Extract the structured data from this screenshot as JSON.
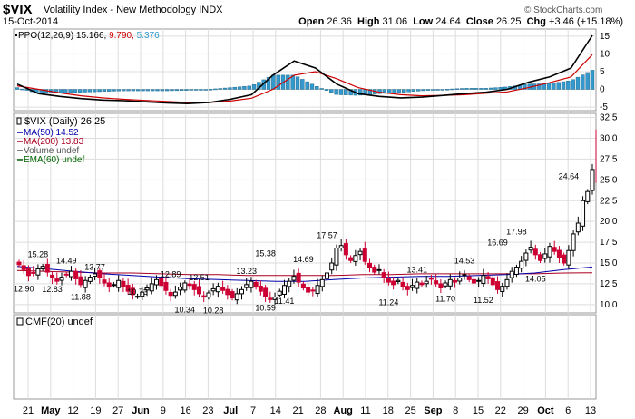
{
  "header": {
    "symbol": "$VIX",
    "name": "Volatility Index - New Methodology",
    "exchange": "INDX",
    "date": "15-Oct-2014",
    "open_label": "Open",
    "open": "26.36",
    "high_label": "High",
    "high": "31.06",
    "low_label": "Low",
    "low": "24.64",
    "close_label": "Close",
    "close": "26.25",
    "chg_label": "Chg",
    "chg": "+3.46 (+15.18%)",
    "brand": "© StockCharts.com"
  },
  "colors": {
    "up": "#000000",
    "down": "#cc0033",
    "ppo": "#000000",
    "signal": "#cc0000",
    "hist": "#3399cc",
    "ma50": "#0000aa",
    "ma200": "#aa0022",
    "ema60": "#006600",
    "grid": "#dddddd"
  },
  "chart_data": [
    {
      "type": "line",
      "panel": "ppo",
      "legend": {
        "label": "PPO(12,26,9)",
        "ppo": "15.166",
        "signal": "9.790",
        "hist": "5.376"
      },
      "ylim": [
        -6,
        17
      ],
      "y_ticks": [
        "15",
        "10",
        "5",
        "0",
        "-5"
      ],
      "series": [
        {
          "name": "PPO",
          "values": [
            1.5,
            -1.2,
            -2.0,
            -2.6,
            -3.0,
            -3.2,
            -3.5,
            -3.8,
            -4.0,
            -3.7,
            -2.8,
            -1.5,
            4.0,
            8.0,
            6.0,
            1.5,
            -1.2,
            -2.0,
            -2.4,
            -2.2,
            -1.7,
            -1.2,
            -0.8,
            0.0,
            2.0,
            3.5,
            6.0,
            15.2
          ]
        },
        {
          "name": "Signal",
          "values": [
            1.0,
            0.0,
            -1.0,
            -1.8,
            -2.4,
            -2.8,
            -3.1,
            -3.4,
            -3.7,
            -3.7,
            -3.3,
            -2.5,
            0.0,
            4.0,
            5.0,
            3.0,
            0.5,
            -0.8,
            -1.5,
            -1.8,
            -1.7,
            -1.5,
            -1.1,
            -0.7,
            0.5,
            1.9,
            3.5,
            9.8
          ]
        },
        {
          "name": "Histogram",
          "values": [
            0.5,
            -1.2,
            -1.0,
            -0.8,
            -0.6,
            -0.4,
            -0.4,
            -0.4,
            -0.3,
            0.0,
            0.5,
            1.0,
            4.0,
            4.0,
            1.0,
            -1.5,
            -1.7,
            -1.2,
            -0.9,
            -0.4,
            0.0,
            0.3,
            0.3,
            0.7,
            1.5,
            1.6,
            2.5,
            5.4
          ]
        }
      ]
    },
    {
      "type": "candlestick",
      "panel": "price",
      "legend": {
        "title": "$VIX (Daily) 26.25",
        "ma50": "MA(50) 14.52",
        "ma200": "MA(200) 13.83",
        "volume": "Volume undef",
        "ema60": "EMA(60) undef"
      },
      "ylim": [
        9,
        33
      ],
      "y_ticks": [
        "32.5",
        "30.0",
        "27.5",
        "25.0",
        "22.5",
        "20.0",
        "17.5",
        "15.0",
        "12.5",
        "10.0"
      ],
      "x_ticks": [
        "21",
        "May",
        "12",
        "19",
        "27",
        "Jun",
        "9",
        "16",
        "23",
        "Jul",
        "7",
        "14",
        "21",
        "28",
        "Aug",
        "11",
        "18",
        "25",
        "Sep",
        "8",
        "15",
        "22",
        "29",
        "Oct",
        "6",
        "13"
      ],
      "closes": [
        14.8,
        14.2,
        13.5,
        13.8,
        14.3,
        14.6,
        13.9,
        13.2,
        12.8,
        13.3,
        13.6,
        14.0,
        13.1,
        12.4,
        12.9,
        13.3,
        13.7,
        13.2,
        12.6,
        12.1,
        12.4,
        12.9,
        12.2,
        11.6,
        11.2,
        11.0,
        11.5,
        12.0,
        12.5,
        13.0,
        12.3,
        11.7,
        11.1,
        11.5,
        12.1,
        12.6,
        12.3,
        11.8,
        11.3,
        10.9,
        11.4,
        11.9,
        12.2,
        11.7,
        11.2,
        10.8,
        11.3,
        11.8,
        12.4,
        12.8,
        12.1,
        11.6,
        11.0,
        10.6,
        10.9,
        11.6,
        12.3,
        12.8,
        13.4,
        12.7,
        12.0,
        11.5,
        11.7,
        12.3,
        13.0,
        13.8,
        15.0,
        16.8,
        17.1,
        16.0,
        15.3,
        15.9,
        16.4,
        15.2,
        14.5,
        13.9,
        14.2,
        13.3,
        12.7,
        12.4,
        12.9,
        12.2,
        11.8,
        12.3,
        12.7,
        12.4,
        12.8,
        13.1,
        12.5,
        12.0,
        12.6,
        13.0,
        12.7,
        13.2,
        13.6,
        13.0,
        12.6,
        12.9,
        13.5,
        13.1,
        12.4,
        11.8,
        12.2,
        13.0,
        14.0,
        14.5,
        15.2,
        16.2,
        16.9,
        16.0,
        15.3,
        16.1,
        17.0,
        16.4,
        15.6,
        15.0,
        16.5,
        18.5,
        19.8,
        22.5,
        23.6,
        26.25
      ],
      "labels": [
        {
          "i": 1,
          "v": 12.9,
          "text": "12.90"
        },
        {
          "i": 4,
          "v": 15.28,
          "text": "15.28"
        },
        {
          "i": 7,
          "v": 12.83,
          "text": "12.83"
        },
        {
          "i": 10,
          "v": 14.49,
          "text": "14.49"
        },
        {
          "i": 13,
          "v": 11.88,
          "text": "11.88"
        },
        {
          "i": 16,
          "v": 13.77,
          "text": "13.77"
        },
        {
          "i": 25,
          "v": 10.73,
          "text": "10.73"
        },
        {
          "i": 32,
          "v": 12.89,
          "text": "12.89"
        },
        {
          "i": 35,
          "v": 10.34,
          "text": "10.34"
        },
        {
          "i": 38,
          "v": 12.51,
          "text": "12.51"
        },
        {
          "i": 41,
          "v": 10.28,
          "text": "10.28"
        },
        {
          "i": 48,
          "v": 13.23,
          "text": "13.23"
        },
        {
          "i": 52,
          "v": 10.59,
          "text": "10.59"
        },
        {
          "i": 52,
          "v": 15.38,
          "text": "15.38"
        },
        {
          "i": 56,
          "v": 11.41,
          "text": "11.41"
        },
        {
          "i": 60,
          "v": 14.69,
          "text": "14.69"
        },
        {
          "i": 65,
          "v": 17.57,
          "text": "17.57"
        },
        {
          "i": 78,
          "v": 11.24,
          "text": "11.24"
        },
        {
          "i": 84,
          "v": 13.41,
          "text": "13.41"
        },
        {
          "i": 90,
          "v": 11.7,
          "text": "11.70"
        },
        {
          "i": 94,
          "v": 14.53,
          "text": "14.53"
        },
        {
          "i": 98,
          "v": 11.52,
          "text": "11.52"
        },
        {
          "i": 101,
          "v": 16.69,
          "text": "16.69"
        },
        {
          "i": 105,
          "v": 17.98,
          "text": "17.98"
        },
        {
          "i": 109,
          "v": 14.05,
          "text": "14.05"
        },
        {
          "i": 116,
          "v": 24.64,
          "text": "24.64"
        }
      ],
      "ma50": [
        14.6,
        14.3,
        14.0,
        13.7,
        13.5,
        13.3,
        13.1,
        13.0,
        12.9,
        12.8,
        12.8,
        13.0,
        13.2,
        13.3,
        13.4,
        13.4,
        13.5,
        13.6,
        13.8,
        14.2,
        14.52
      ],
      "ma200": [
        14.1,
        14.0,
        13.9,
        13.8,
        13.8,
        13.7,
        13.6,
        13.6,
        13.5,
        13.5,
        13.5,
        13.5,
        13.6,
        13.6,
        13.7,
        13.7,
        13.7,
        13.7,
        13.7,
        13.8,
        13.83
      ]
    },
    {
      "type": "line",
      "panel": "cmf",
      "legend": {
        "label": "CMF(20) undef"
      }
    }
  ]
}
